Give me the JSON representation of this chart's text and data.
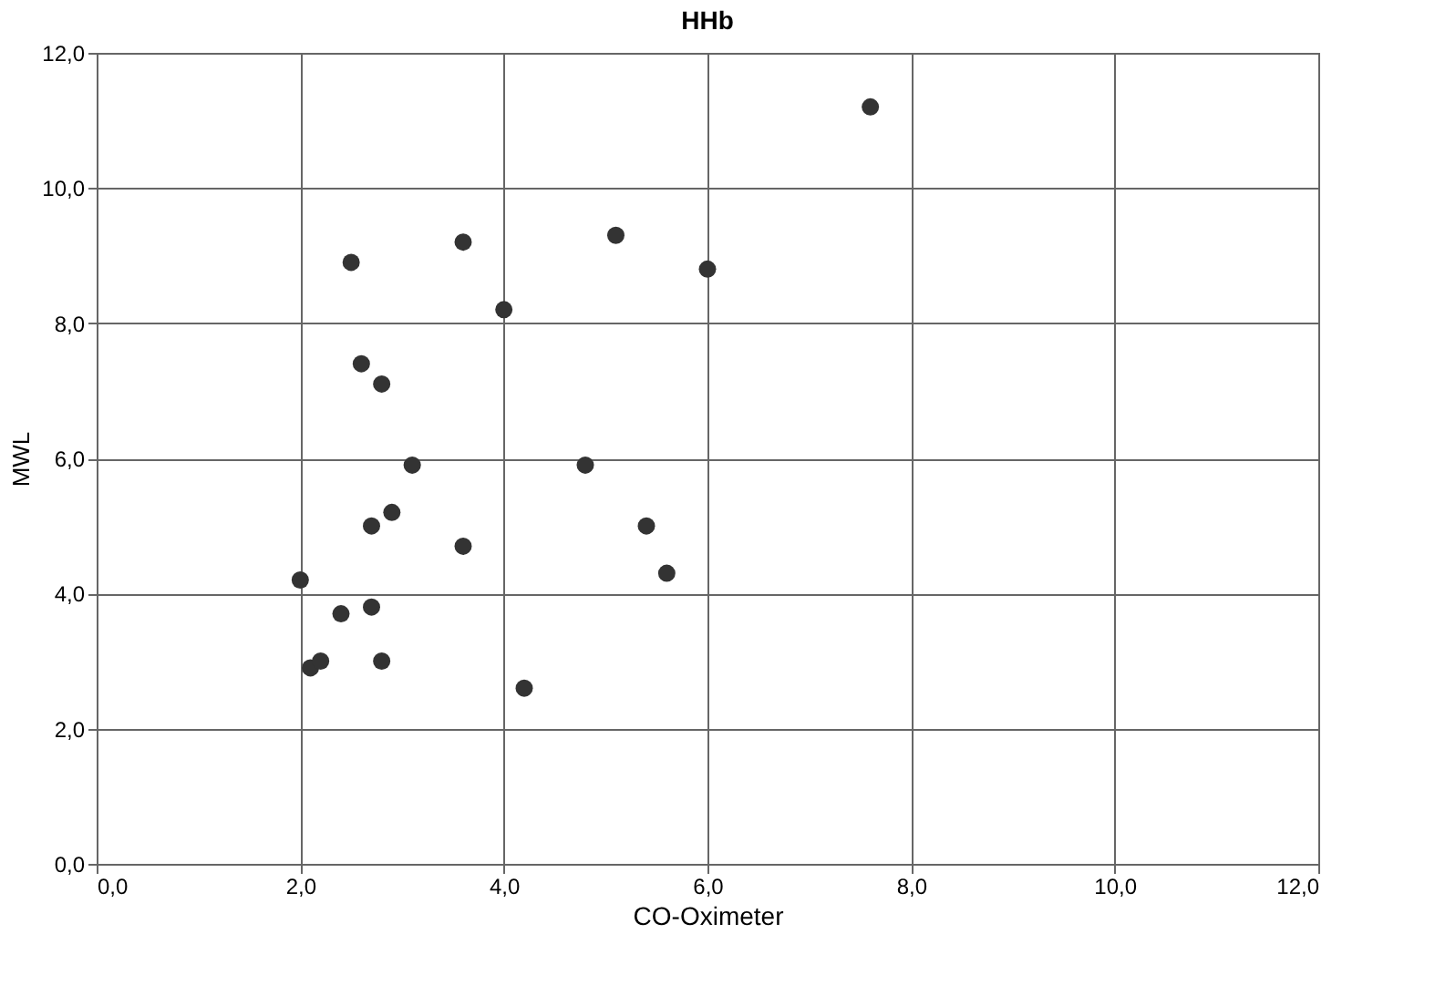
{
  "chart_data": {
    "type": "scatter",
    "title": "HHb",
    "xlabel": "CO-Oximeter",
    "ylabel": "MWL",
    "x": [
      2.0,
      2.1,
      2.2,
      2.4,
      2.5,
      2.6,
      2.7,
      2.7,
      2.8,
      2.8,
      2.9,
      3.1,
      3.6,
      3.6,
      4.0,
      4.2,
      4.8,
      5.1,
      5.4,
      5.6,
      6.0,
      7.6
    ],
    "series": [
      {
        "color": "#333333",
        "values": [
          4.2,
          2.9,
          3.0,
          3.7,
          8.9,
          7.4,
          5.0,
          3.8,
          7.1,
          3.0,
          5.2,
          5.9,
          9.2,
          4.7,
          8.2,
          2.6,
          5.9,
          9.3,
          5.0,
          4.3,
          8.8,
          11.2
        ]
      }
    ],
    "xlim": [
      0,
      12
    ],
    "ylim": [
      0,
      12
    ],
    "xticks": [
      {
        "value": 0,
        "label": "0,0"
      },
      {
        "value": 2,
        "label": "2,0"
      },
      {
        "value": 4,
        "label": "4,0"
      },
      {
        "value": 6,
        "label": "6,0"
      },
      {
        "value": 8,
        "label": "8,0"
      },
      {
        "value": 10,
        "label": "10,0"
      },
      {
        "value": 12,
        "label": "12,0"
      }
    ],
    "yticks": [
      {
        "value": 0,
        "label": "0,0"
      },
      {
        "value": 2,
        "label": "2,0"
      },
      {
        "value": 4,
        "label": "4,0"
      },
      {
        "value": 6,
        "label": "6,0"
      },
      {
        "value": 8,
        "label": "8,0"
      },
      {
        "value": 10,
        "label": "10,0"
      },
      {
        "value": 12,
        "label": "12,0"
      }
    ],
    "grid": true,
    "marker": "circle"
  }
}
